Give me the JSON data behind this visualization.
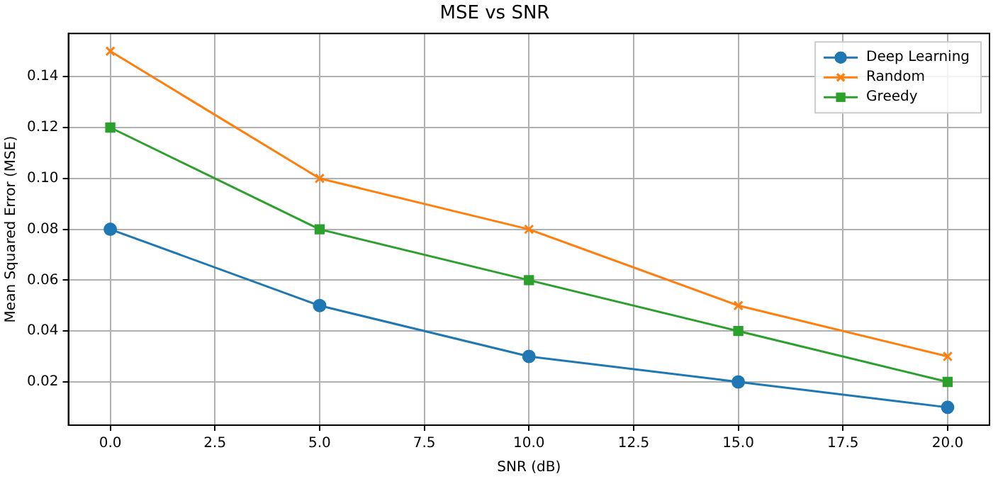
{
  "chart_data": {
    "type": "line",
    "title": "MSE vs SNR",
    "xlabel": "SNR (dB)",
    "ylabel": "Mean Squared Error (MSE)",
    "x": [
      0,
      5,
      10,
      15,
      20
    ],
    "series": [
      {
        "name": "Deep Learning",
        "color": "#1f77b4",
        "marker": "circle",
        "values": [
          0.08,
          0.05,
          0.03,
          0.02,
          0.01
        ]
      },
      {
        "name": "Random",
        "color": "#ff7f0e",
        "marker": "cross",
        "values": [
          0.15,
          0.1,
          0.08,
          0.05,
          0.03
        ]
      },
      {
        "name": "Greedy",
        "color": "#2ca02c",
        "marker": "square",
        "values": [
          0.12,
          0.08,
          0.06,
          0.04,
          0.02
        ]
      }
    ],
    "xlim": [
      -1,
      21
    ],
    "xticks": [
      {
        "value": 0,
        "label": "0.0"
      },
      {
        "value": 2.5,
        "label": "2.5"
      },
      {
        "value": 5,
        "label": "5.0"
      },
      {
        "value": 7.5,
        "label": "7.5"
      },
      {
        "value": 10,
        "label": "10.0"
      },
      {
        "value": 12.5,
        "label": "12.5"
      },
      {
        "value": 15,
        "label": "15.0"
      },
      {
        "value": 17.5,
        "label": "17.5"
      },
      {
        "value": 20,
        "label": "20.0"
      }
    ],
    "ylim": [
      0.003,
      0.157
    ],
    "yticks": [
      {
        "value": 0.02,
        "label": "0.02"
      },
      {
        "value": 0.04,
        "label": "0.04"
      },
      {
        "value": 0.06,
        "label": "0.06"
      },
      {
        "value": 0.08,
        "label": "0.08"
      },
      {
        "value": 0.1,
        "label": "0.10"
      },
      {
        "value": 0.12,
        "label": "0.12"
      },
      {
        "value": 0.14,
        "label": "0.14"
      }
    ],
    "grid": true,
    "legend": "top right",
    "line_style": "solid"
  }
}
